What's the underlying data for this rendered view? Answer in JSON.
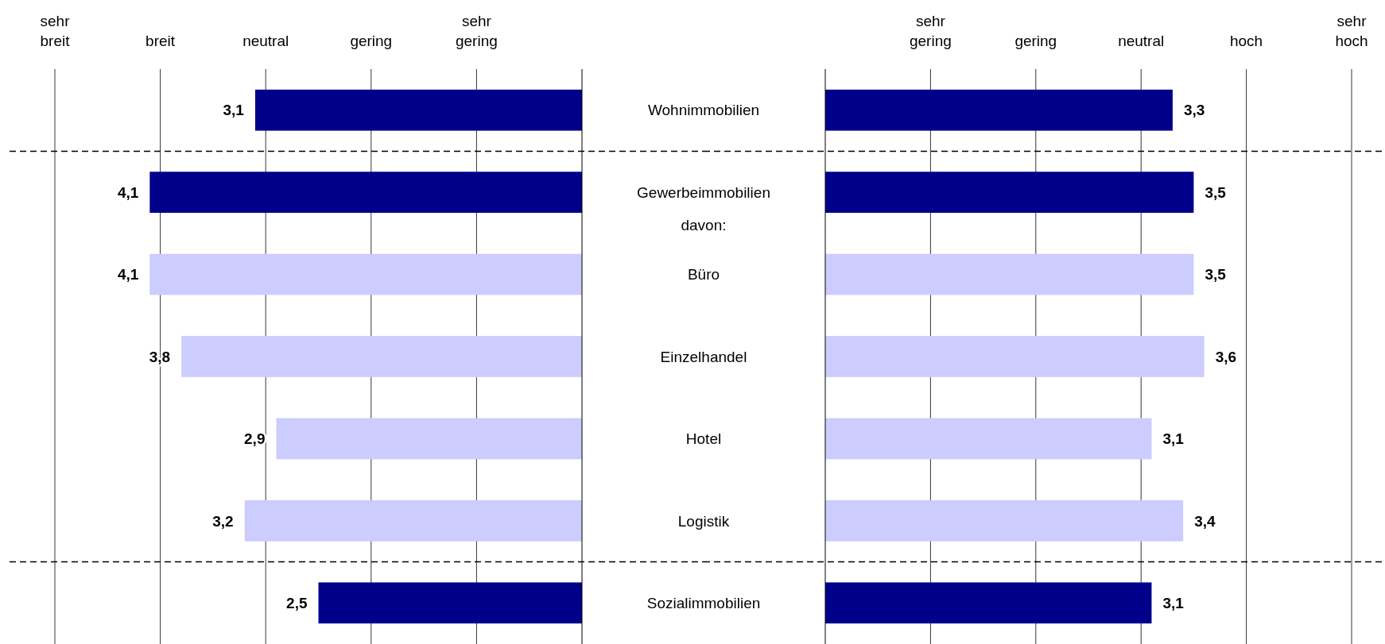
{
  "chart_data": [
    {
      "type": "bar",
      "orientation": "horizontal",
      "categories": [
        "Wohnimmobilien",
        "Gewerbeimmobilien",
        "Büro",
        "Einzelhandel",
        "Hotel",
        "Logistik",
        "Sozialimmobilien"
      ],
      "values": [
        3.1,
        4.1,
        4.1,
        3.8,
        2.9,
        3.2,
        2.5
      ],
      "colors": [
        "#00008b",
        "#00008b",
        "#ccccff",
        "#ccccff",
        "#ccccff",
        "#ccccff",
        "#00008b"
      ],
      "value_labels": [
        "3,1",
        "4,1",
        "4,1",
        "3,8",
        "2,9",
        "3,2",
        "2,5"
      ],
      "xlim": [
        5,
        0
      ],
      "xticks": [
        {
          "value": 5,
          "label": null
        },
        {
          "value": 4,
          "label": null
        },
        {
          "value": 3,
          "label": null
        },
        {
          "value": 2,
          "label": null
        },
        {
          "value": 1,
          "label": null
        }
      ],
      "grid": "x",
      "annotations": [
        "sehr\nbreit",
        "breit",
        "neutral",
        "gering",
        "sehr\ngering",
        "davon:"
      ]
    },
    {
      "type": "bar",
      "orientation": "horizontal",
      "categories": [
        "Wohnimmobilien",
        "Gewerbeimmobilien",
        "Büro",
        "Einzelhandel",
        "Hotel",
        "Logistik",
        "Sozialimmobilien"
      ],
      "values": [
        3.3,
        3.5,
        3.5,
        3.6,
        3.1,
        3.4,
        3.1
      ],
      "colors": [
        "#00008b",
        "#00008b",
        "#ccccff",
        "#ccccff",
        "#ccccff",
        "#ccccff",
        "#00008b"
      ],
      "value_labels": [
        "3,3",
        "3,5",
        "3,5",
        "3,6",
        "3,1",
        "3,4",
        "3,1"
      ],
      "xlim": [
        0,
        5
      ],
      "xticks": [
        {
          "value": 1,
          "label": null
        },
        {
          "value": 2,
          "label": null
        },
        {
          "value": 3,
          "label": null
        },
        {
          "value": 4,
          "label": null
        },
        {
          "value": 5,
          "label": null
        }
      ],
      "grid": "x",
      "tick_labels": "x",
      "annotations": [
        "sehr\ngering",
        "gering",
        "neutral",
        "hoch",
        "sehr\nhoch"
      ]
    }
  ]
}
